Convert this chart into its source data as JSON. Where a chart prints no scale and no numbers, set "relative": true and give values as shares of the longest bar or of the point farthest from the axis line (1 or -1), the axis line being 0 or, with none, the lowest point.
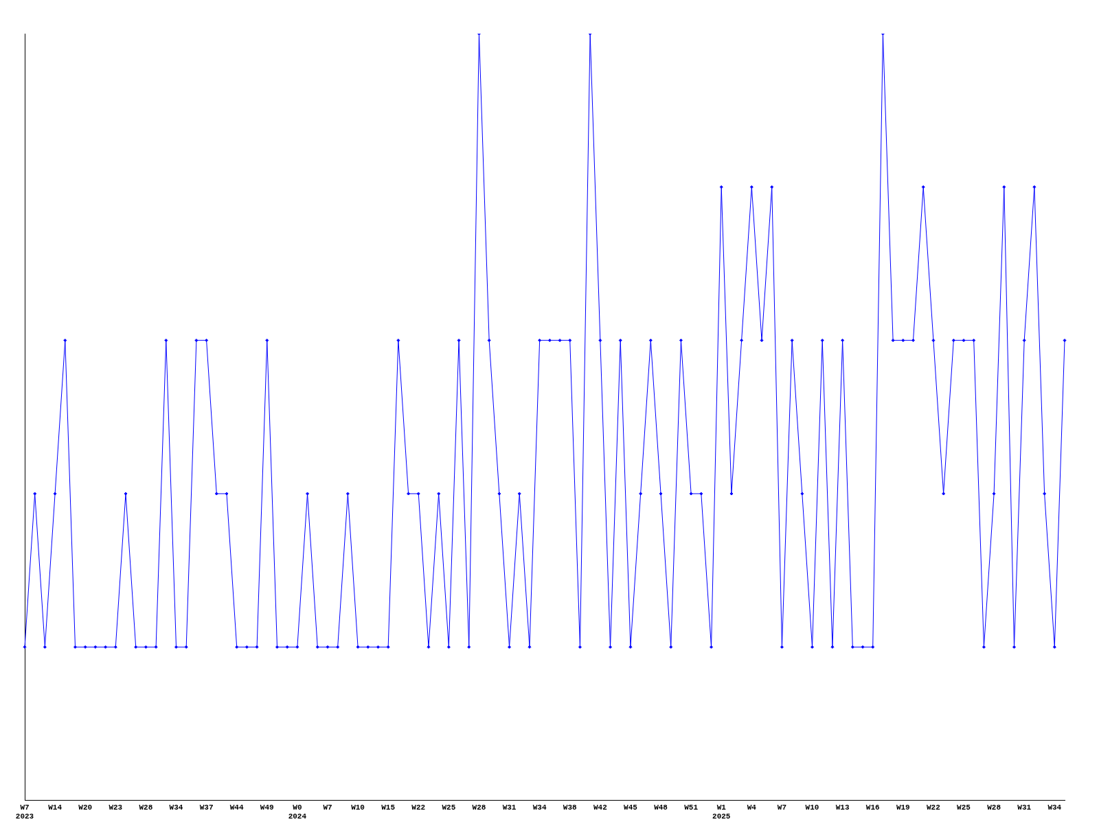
{
  "chart_data": {
    "type": "line",
    "relative": true,
    "color": "#0000ff",
    "marker": "diamond",
    "grid": false,
    "legend": false,
    "categories": [
      "W7\n2023",
      null,
      null,
      "W14",
      null,
      null,
      "W20",
      null,
      null,
      "W23",
      null,
      null,
      "W28",
      null,
      null,
      "W34",
      null,
      null,
      "W37",
      null,
      null,
      "W44",
      null,
      null,
      "W49",
      null,
      null,
      "W0\n2024",
      null,
      null,
      "W7",
      null,
      null,
      "W10",
      null,
      null,
      "W15",
      null,
      null,
      "W22",
      null,
      null,
      "W25",
      null,
      null,
      "W28",
      null,
      null,
      "W31",
      null,
      null,
      "W34",
      null,
      null,
      "W38",
      null,
      null,
      "W42",
      null,
      null,
      "W45",
      null,
      null,
      "W48",
      null,
      null,
      "W51",
      null,
      null,
      "W1\n2025",
      null,
      null,
      "W4",
      null,
      null,
      "W7",
      null,
      null,
      "W10",
      null,
      null,
      "W13",
      null,
      null,
      "W16",
      null,
      null,
      "W19",
      null,
      null,
      "W22",
      null,
      null,
      "W25",
      null,
      null,
      "W28",
      null,
      null,
      "W31",
      null,
      null,
      "W34",
      null
    ],
    "values": [
      0.2,
      0.4,
      0.2,
      0.4,
      0.6,
      0.2,
      0.2,
      0.2,
      0.2,
      0.2,
      0.4,
      0.2,
      0.2,
      0.2,
      0.6,
      0.2,
      0.2,
      0.6,
      0.6,
      0.4,
      0.4,
      0.2,
      0.2,
      0.2,
      0.6,
      0.2,
      0.2,
      0.2,
      0.4,
      0.2,
      0.2,
      0.2,
      0.4,
      0.2,
      0.2,
      0.2,
      0.2,
      0.6,
      0.4,
      0.4,
      0.2,
      0.4,
      0.2,
      0.6,
      0.2,
      1,
      0.6,
      0.4,
      0.2,
      0.4,
      0.2,
      0.6,
      0.6,
      0.6,
      0.6,
      0.2,
      1,
      0.6,
      0.2,
      0.6,
      0.2,
      0.4,
      0.6,
      0.4,
      0.2,
      0.6,
      0.4,
      0.4,
      0.2,
      0.8,
      0.4,
      0.6,
      0.8,
      0.6,
      0.8,
      0.2,
      0.6,
      0.4,
      0.2,
      0.6,
      0.2,
      0.6,
      0.2,
      0.2,
      0.2,
      1,
      0.6,
      0.6,
      0.6,
      0.8,
      0.6,
      0.4,
      0.6,
      0.6,
      0.6,
      0.2,
      0.4,
      0.8,
      0.2,
      0.6,
      0.8,
      0.4,
      0.2,
      0.6
    ]
  }
}
